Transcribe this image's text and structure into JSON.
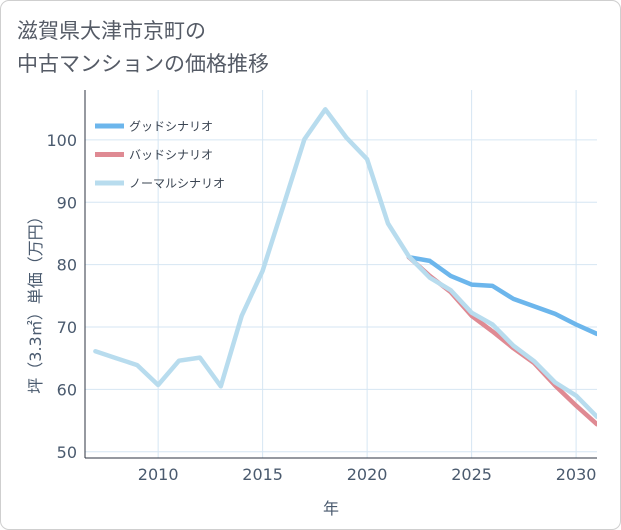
{
  "chart_data": {
    "type": "line",
    "title_lines": [
      "滋賀県大津市京町の",
      "中古マンションの価格推移"
    ],
    "xlabel": "年",
    "ylabel": "坪（3.3㎡）単価（万円）",
    "xlim": [
      2006.5,
      2031
    ],
    "ylim": [
      49,
      108
    ],
    "xticks": [
      2010,
      2015,
      2020,
      2025,
      2030
    ],
    "yticks": [
      50,
      60,
      70,
      80,
      90,
      100
    ],
    "grid": true,
    "legend_position": "top-left",
    "series": [
      {
        "name": "グッドシナリオ",
        "color": "#6cb6ec",
        "x": [
          2022,
          2023,
          2024,
          2025,
          2026,
          2027,
          2028,
          2029,
          2030,
          2031
        ],
        "y": [
          81.2,
          80.6,
          78.2,
          76.8,
          76.6,
          74.5,
          73.3,
          72.1,
          70.4,
          68.9
        ]
      },
      {
        "name": "バッドシナリオ",
        "color": "#df8a93",
        "x": [
          2022,
          2023,
          2024,
          2025,
          2026,
          2027,
          2028,
          2029,
          2030,
          2031
        ],
        "y": [
          81.2,
          78.2,
          75.6,
          71.8,
          69.3,
          66.6,
          64.2,
          60.6,
          57.4,
          54.4
        ]
      },
      {
        "name": "ノーマルシナリオ",
        "color": "#b8dcee",
        "x": [
          2007,
          2008,
          2009,
          2010,
          2011,
          2012,
          2013,
          2014,
          2015,
          2016,
          2017,
          2018,
          2019,
          2020,
          2021,
          2022,
          2023,
          2024,
          2025,
          2026,
          2027,
          2028,
          2029,
          2030,
          2031
        ],
        "y": [
          66.1,
          65.0,
          63.9,
          60.7,
          64.6,
          65.1,
          60.5,
          71.8,
          79.0,
          89.5,
          100.1,
          104.9,
          100.4,
          96.9,
          86.6,
          81.3,
          77.9,
          75.9,
          72.3,
          70.4,
          67.0,
          64.5,
          61.1,
          59.0,
          55.6
        ]
      }
    ]
  }
}
